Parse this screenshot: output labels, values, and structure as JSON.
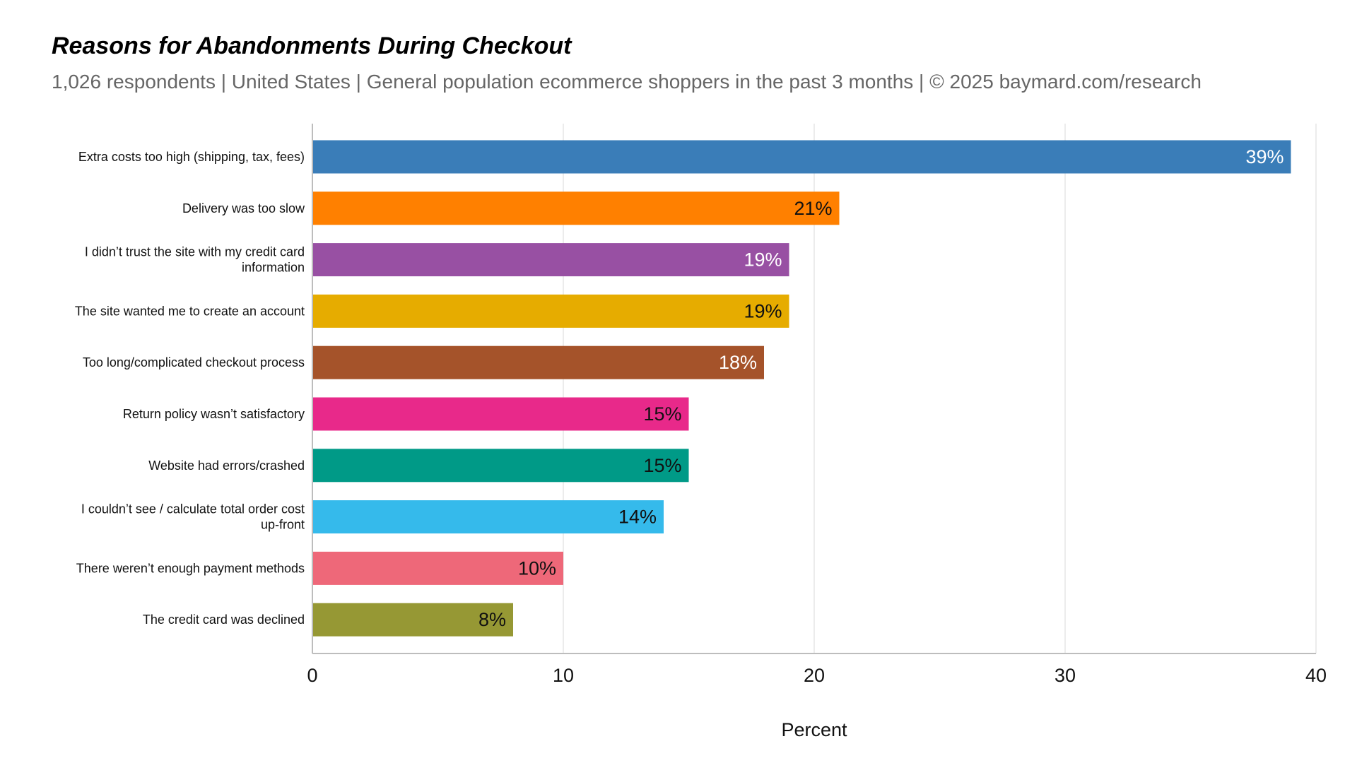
{
  "chart_data": {
    "type": "bar",
    "orientation": "horizontal",
    "title": "Reasons for Abandonments During Checkout",
    "subtitle": "1,026 respondents  |  United States  |  General population ecommerce shoppers in the past 3 months | © 2025 baymard.com/research",
    "xlabel": "Percent",
    "ylabel": "",
    "xlim": [
      0,
      40
    ],
    "xticks": [
      0,
      10,
      20,
      30,
      40
    ],
    "grid": true,
    "legend": "none",
    "categories": [
      [
        "Extra costs too high (shipping, tax, fees)"
      ],
      [
        "Delivery was too slow"
      ],
      [
        "I didn’t trust the site with my credit card",
        "information"
      ],
      [
        "The site wanted me to create an account"
      ],
      [
        "Too long/complicated checkout process"
      ],
      [
        "Return policy wasn’t satisfactory"
      ],
      [
        "Website had errors/crashed"
      ],
      [
        "I couldn’t see / calculate total order cost",
        "up-front"
      ],
      [
        "There weren’t enough payment methods"
      ],
      [
        "The credit card was declined"
      ]
    ],
    "values": [
      39,
      21,
      19,
      19,
      18,
      15,
      15,
      14,
      10,
      8
    ],
    "data_labels": [
      "39%",
      "21%",
      "19%",
      "19%",
      "18%",
      "15%",
      "15%",
      "14%",
      "10%",
      "8%"
    ],
    "colors": [
      "#3A7DB8",
      "#FF8000",
      "#9850A3",
      "#E6AC00",
      "#A5532A",
      "#E8298A",
      "#009A87",
      "#35BAEB",
      "#EE6879",
      "#969834"
    ],
    "label_colors": [
      "#FFFFFF",
      "#111111",
      "#FFFFFF",
      "#111111",
      "#FFFFFF",
      "#111111",
      "#111111",
      "#111111",
      "#111111",
      "#111111"
    ],
    "gridline_color": "#D9D9D9",
    "axis_color": "#BDBDBD"
  }
}
